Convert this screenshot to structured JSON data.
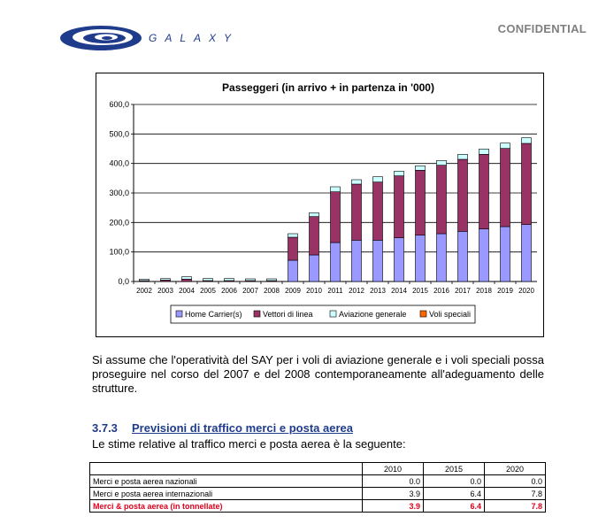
{
  "header": {
    "logo_text": "GALAXY",
    "confidential": "CONFIDENTIAL"
  },
  "chart_data": {
    "type": "bar",
    "stacked": true,
    "title": "Passeggeri (in arrivo + in partenza in '000)",
    "xlabel": "",
    "ylabel": "",
    "ylim": [
      0,
      600
    ],
    "yticks": [
      "0,0",
      "100,0",
      "200,0",
      "300,0",
      "400,0",
      "500,0",
      "600,0"
    ],
    "categories": [
      "2002",
      "2003",
      "2004",
      "2005",
      "2006",
      "2007",
      "2008",
      "2009",
      "2010",
      "2011",
      "2012",
      "2013",
      "2014",
      "2015",
      "2016",
      "2017",
      "2018",
      "2019",
      "2020"
    ],
    "legend_position": "bottom",
    "grid": true,
    "series": [
      {
        "name": "Home Carrier(s)",
        "color": "#9999ff",
        "values": [
          0,
          0,
          0,
          0,
          0,
          0,
          0,
          72,
          90,
          132,
          140,
          140,
          148,
          157,
          162,
          170,
          178,
          186,
          193
        ]
      },
      {
        "name": "Vettori di linea",
        "color": "#993366",
        "values": [
          3,
          5,
          8,
          3,
          3,
          3,
          3,
          78,
          130,
          172,
          190,
          197,
          210,
          220,
          232,
          244,
          253,
          265,
          275
        ]
      },
      {
        "name": "Aviazione generale",
        "color": "#ccffff",
        "values": [
          5,
          5,
          8,
          7,
          7,
          6,
          6,
          12,
          13,
          17,
          15,
          18,
          16,
          15,
          16,
          17,
          18,
          18,
          19
        ]
      },
      {
        "name": "Voli speciali",
        "color": "#ff6600",
        "values": [
          0,
          0,
          0,
          0,
          0,
          0,
          0,
          0,
          0,
          0,
          0,
          0,
          0,
          0,
          0,
          0,
          0,
          0,
          0
        ]
      }
    ]
  },
  "paragraph": "Si assume che l'operatività del SAY per i voli di aviazione generale e i voli speciali possa proseguire nel corso del 2007 e del 2008 contemporaneamente all'adeguamento delle strutture.",
  "section": {
    "number": "3.7.3",
    "title": "Previsioni di traffico merci e posta aerea",
    "intro": "Le stime relative al traffico merci e posta aerea è la seguente:"
  },
  "table": {
    "headers": [
      "",
      "2010",
      "2015",
      "2020"
    ],
    "rows": [
      {
        "label": "Merci e posta aerea nazionali",
        "values": [
          "0.0",
          "0.0",
          "0.0"
        ]
      },
      {
        "label": "Merci e posta aerea internazionali",
        "values": [
          "3.9",
          "6.4",
          "7.8"
        ]
      },
      {
        "label": "Merci & posta aerea (in tonnellate)",
        "values": [
          "3.9",
          "6.4",
          "7.8"
        ]
      }
    ]
  }
}
